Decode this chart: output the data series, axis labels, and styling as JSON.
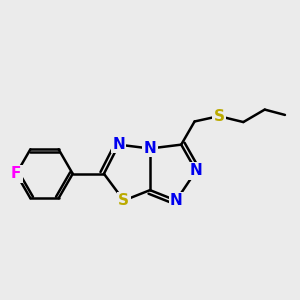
{
  "bg_color": "#ebebeb",
  "bond_color": "#000000",
  "bond_width": 1.8,
  "atom_colors": {
    "N": "#0000EE",
    "S": "#BBAA00",
    "F": "#FF00FF",
    "C": "#000000"
  },
  "font_size_atom": 11
}
